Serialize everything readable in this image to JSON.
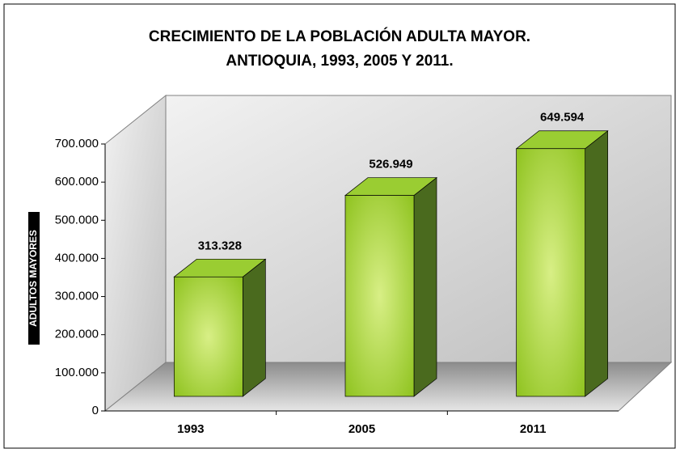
{
  "chart_data": {
    "type": "bar3d",
    "title": [
      "CRECIMIENTO DE LA POBLACIÓN ADULTA MAYOR.",
      "ANTIOQUIA, 1993, 2005 Y 2011."
    ],
    "y_label": "ADULTOS MAYORES",
    "categories": [
      "1993",
      "2005",
      "2011"
    ],
    "values": [
      313328,
      526949,
      649594
    ],
    "value_labels": [
      "313.328",
      "526.949",
      "649.594"
    ],
    "color": "#9acd32",
    "ylim": [
      0,
      700000
    ],
    "yticks": [
      0,
      {
        "value": 100000,
        "label": "100.000"
      },
      {
        "value": 200000,
        "label": "200.000"
      },
      {
        "value": 300000,
        "label": "300.000"
      },
      {
        "value": 400000,
        "label": "400.000"
      },
      {
        "value": 500000,
        "label": "500.000"
      },
      {
        "value": 600000,
        "label": "600.000"
      },
      {
        "value": 700000,
        "label": "700.000"
      }
    ],
    "grid": false
  }
}
